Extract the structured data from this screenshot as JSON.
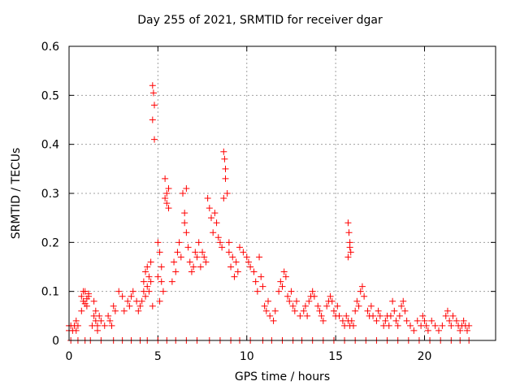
{
  "chart_data": {
    "type": "scatter",
    "title": "Day 255 of 2021, SRMTID for receiver dgar",
    "xlabel": "GPS time / hours",
    "ylabel": "SRMTID / TECUs",
    "xlim": [
      0,
      24
    ],
    "ylim": [
      0,
      0.6
    ],
    "x_ticks": [
      0,
      5,
      10,
      15,
      20
    ],
    "y_ticks": [
      0,
      0.1,
      0.2,
      0.3,
      0.4,
      0.5,
      0.6
    ],
    "x_tick_labels": [
      "0",
      "5",
      "10",
      "15",
      "20"
    ],
    "y_tick_labels": [
      "0",
      "0.1",
      "0.2",
      "0.3",
      "0.4",
      "0.5",
      "0.6"
    ],
    "grid": true,
    "marker": "+",
    "color": "#ff0000",
    "series": [
      {
        "name": "SRMTID",
        "points": [
          [
            0.0,
            0.02
          ],
          [
            0.0,
            0.03
          ],
          [
            0.1,
            0.03
          ],
          [
            0.2,
            0.02
          ],
          [
            0.3,
            0.03
          ],
          [
            0.4,
            0.02
          ],
          [
            0.5,
            0.0
          ],
          [
            0.4,
            0.04
          ],
          [
            0.5,
            0.03
          ],
          [
            0.7,
            0.09
          ],
          [
            0.8,
            0.08
          ],
          [
            0.9,
            0.1
          ],
          [
            1.0,
            0.07
          ],
          [
            1.1,
            0.09
          ],
          [
            0.8,
            0.1
          ],
          [
            1.0,
            0.085
          ],
          [
            1.1,
            0.095
          ],
          [
            0.9,
            0.075
          ],
          [
            0.7,
            0.06
          ],
          [
            1.3,
            0.03
          ],
          [
            1.4,
            0.05
          ],
          [
            1.5,
            0.04
          ],
          [
            1.5,
            0.06
          ],
          [
            1.6,
            0.03
          ],
          [
            1.7,
            0.05
          ],
          [
            1.8,
            0.04
          ],
          [
            1.4,
            0.08
          ],
          [
            1.6,
            0.02
          ],
          [
            2.0,
            0.03
          ],
          [
            2.2,
            0.05
          ],
          [
            2.3,
            0.04
          ],
          [
            2.4,
            0.03
          ],
          [
            2.5,
            0.07
          ],
          [
            2.6,
            0.06
          ],
          [
            2.8,
            0.1
          ],
          [
            3.0,
            0.09
          ],
          [
            3.1,
            0.06
          ],
          [
            3.3,
            0.08
          ],
          [
            3.4,
            0.07
          ],
          [
            3.5,
            0.09
          ],
          [
            3.6,
            0.1
          ],
          [
            3.8,
            0.08
          ],
          [
            3.9,
            0.06
          ],
          [
            4.0,
            0.07
          ],
          [
            4.1,
            0.08
          ],
          [
            4.2,
            0.1
          ],
          [
            4.2,
            0.12
          ],
          [
            4.3,
            0.14
          ],
          [
            4.3,
            0.09
          ],
          [
            4.4,
            0.11
          ],
          [
            4.4,
            0.15
          ],
          [
            4.5,
            0.13
          ],
          [
            4.5,
            0.1
          ],
          [
            4.6,
            0.12
          ],
          [
            4.6,
            0.16
          ],
          [
            4.7,
            0.07
          ],
          [
            4.7,
            0.52
          ],
          [
            4.75,
            0.505
          ],
          [
            4.8,
            0.48
          ],
          [
            4.7,
            0.45
          ],
          [
            4.8,
            0.41
          ],
          [
            5.0,
            0.2
          ],
          [
            5.1,
            0.18
          ],
          [
            5.2,
            0.15
          ],
          [
            5.0,
            0.13
          ],
          [
            5.3,
            0.1
          ],
          [
            5.1,
            0.08
          ],
          [
            5.2,
            0.12
          ],
          [
            5.4,
            0.33
          ],
          [
            5.5,
            0.3
          ],
          [
            5.5,
            0.28
          ],
          [
            5.6,
            0.27
          ],
          [
            5.4,
            0.29
          ],
          [
            5.6,
            0.31
          ],
          [
            5.8,
            0.12
          ],
          [
            5.9,
            0.16
          ],
          [
            6.0,
            0.14
          ],
          [
            6.1,
            0.18
          ],
          [
            6.2,
            0.2
          ],
          [
            6.3,
            0.17
          ],
          [
            6.4,
            0.3
          ],
          [
            6.5,
            0.26
          ],
          [
            6.5,
            0.24
          ],
          [
            6.6,
            0.22
          ],
          [
            6.6,
            0.31
          ],
          [
            6.7,
            0.19
          ],
          [
            6.8,
            0.16
          ],
          [
            6.9,
            0.14
          ],
          [
            7.0,
            0.15
          ],
          [
            7.1,
            0.18
          ],
          [
            7.2,
            0.17
          ],
          [
            7.3,
            0.2
          ],
          [
            7.4,
            0.15
          ],
          [
            7.5,
            0.18
          ],
          [
            7.6,
            0.17
          ],
          [
            7.7,
            0.16
          ],
          [
            7.8,
            0.29
          ],
          [
            7.9,
            0.27
          ],
          [
            8.0,
            0.25
          ],
          [
            8.1,
            0.22
          ],
          [
            8.2,
            0.26
          ],
          [
            8.3,
            0.24
          ],
          [
            8.4,
            0.21
          ],
          [
            8.5,
            0.2
          ],
          [
            8.6,
            0.19
          ],
          [
            8.7,
            0.385
          ],
          [
            8.75,
            0.37
          ],
          [
            8.8,
            0.35
          ],
          [
            8.8,
            0.33
          ],
          [
            8.9,
            0.3
          ],
          [
            8.7,
            0.29
          ],
          [
            9.0,
            0.2
          ],
          [
            9.0,
            0.18
          ],
          [
            9.1,
            0.15
          ],
          [
            9.2,
            0.17
          ],
          [
            9.3,
            0.13
          ],
          [
            9.4,
            0.16
          ],
          [
            9.5,
            0.14
          ],
          [
            9.6,
            0.19
          ],
          [
            9.8,
            0.18
          ],
          [
            10.0,
            0.17
          ],
          [
            10.1,
            0.16
          ],
          [
            10.2,
            0.15
          ],
          [
            10.4,
            0.14
          ],
          [
            10.5,
            0.12
          ],
          [
            10.6,
            0.1
          ],
          [
            10.7,
            0.17
          ],
          [
            10.8,
            0.13
          ],
          [
            10.9,
            0.11
          ],
          [
            11.0,
            0.07
          ],
          [
            11.1,
            0.06
          ],
          [
            11.2,
            0.08
          ],
          [
            11.3,
            0.05
          ],
          [
            11.5,
            0.04
          ],
          [
            11.6,
            0.06
          ],
          [
            11.8,
            0.1
          ],
          [
            11.9,
            0.12
          ],
          [
            12.0,
            0.11
          ],
          [
            12.1,
            0.14
          ],
          [
            12.2,
            0.13
          ],
          [
            12.3,
            0.09
          ],
          [
            12.4,
            0.08
          ],
          [
            12.5,
            0.1
          ],
          [
            12.6,
            0.07
          ],
          [
            12.7,
            0.06
          ],
          [
            12.8,
            0.08
          ],
          [
            13.0,
            0.05
          ],
          [
            13.2,
            0.06
          ],
          [
            13.3,
            0.07
          ],
          [
            13.4,
            0.05
          ],
          [
            13.5,
            0.08
          ],
          [
            13.6,
            0.09
          ],
          [
            13.7,
            0.1
          ],
          [
            13.8,
            0.09
          ],
          [
            14.0,
            0.07
          ],
          [
            14.1,
            0.06
          ],
          [
            14.2,
            0.05
          ],
          [
            14.3,
            0.04
          ],
          [
            14.5,
            0.07
          ],
          [
            14.6,
            0.08
          ],
          [
            14.7,
            0.09
          ],
          [
            14.8,
            0.08
          ],
          [
            14.9,
            0.06
          ],
          [
            15.0,
            0.05
          ],
          [
            15.1,
            0.07
          ],
          [
            15.2,
            0.05
          ],
          [
            15.4,
            0.04
          ],
          [
            15.5,
            0.03
          ],
          [
            15.6,
            0.05
          ],
          [
            15.7,
            0.04
          ],
          [
            15.8,
            0.03
          ],
          [
            15.9,
            0.04
          ],
          [
            15.7,
            0.24
          ],
          [
            15.75,
            0.22
          ],
          [
            15.8,
            0.2
          ],
          [
            15.8,
            0.19
          ],
          [
            15.85,
            0.18
          ],
          [
            15.7,
            0.17
          ],
          [
            16.0,
            0.03
          ],
          [
            16.1,
            0.06
          ],
          [
            16.2,
            0.08
          ],
          [
            16.3,
            0.07
          ],
          [
            16.4,
            0.1
          ],
          [
            16.5,
            0.11
          ],
          [
            16.6,
            0.09
          ],
          [
            16.8,
            0.06
          ],
          [
            16.9,
            0.05
          ],
          [
            17.0,
            0.07
          ],
          [
            17.1,
            0.05
          ],
          [
            17.3,
            0.04
          ],
          [
            17.4,
            0.06
          ],
          [
            17.5,
            0.05
          ],
          [
            17.7,
            0.03
          ],
          [
            17.8,
            0.04
          ],
          [
            17.9,
            0.05
          ],
          [
            18.0,
            0.03
          ],
          [
            18.1,
            0.05
          ],
          [
            18.2,
            0.08
          ],
          [
            18.3,
            0.06
          ],
          [
            18.4,
            0.04
          ],
          [
            18.5,
            0.03
          ],
          [
            18.6,
            0.05
          ],
          [
            18.7,
            0.07
          ],
          [
            18.8,
            0.08
          ],
          [
            18.9,
            0.06
          ],
          [
            19.0,
            0.04
          ],
          [
            19.2,
            0.03
          ],
          [
            19.4,
            0.02
          ],
          [
            19.6,
            0.04
          ],
          [
            19.8,
            0.03
          ],
          [
            19.9,
            0.05
          ],
          [
            20.0,
            0.04
          ],
          [
            20.1,
            0.03
          ],
          [
            20.2,
            0.02
          ],
          [
            20.4,
            0.04
          ],
          [
            20.6,
            0.03
          ],
          [
            20.8,
            0.02
          ],
          [
            21.0,
            0.03
          ],
          [
            21.2,
            0.05
          ],
          [
            21.3,
            0.06
          ],
          [
            21.4,
            0.04
          ],
          [
            21.5,
            0.03
          ],
          [
            21.6,
            0.05
          ],
          [
            21.8,
            0.04
          ],
          [
            21.9,
            0.03
          ],
          [
            22.0,
            0.02
          ],
          [
            22.1,
            0.03
          ],
          [
            22.2,
            0.04
          ],
          [
            22.3,
            0.03
          ],
          [
            22.4,
            0.02
          ],
          [
            22.5,
            0.03
          ],
          [
            0.1,
            0.0
          ],
          [
            0.9,
            0.0
          ],
          [
            1.2,
            0.0
          ],
          [
            1.8,
            0.0
          ],
          [
            2.5,
            0.0
          ],
          [
            3.0,
            0.0
          ],
          [
            3.5,
            0.0
          ],
          [
            4.0,
            0.0
          ],
          [
            4.4,
            0.0
          ],
          [
            5.0,
            0.0
          ],
          [
            5.5,
            0.0
          ],
          [
            6.0,
            0.0
          ],
          [
            6.6,
            0.0
          ],
          [
            7.2,
            0.0
          ],
          [
            7.9,
            0.0
          ],
          [
            8.5,
            0.0
          ],
          [
            9.1,
            0.0
          ],
          [
            9.6,
            0.0
          ],
          [
            10.2,
            0.0
          ],
          [
            10.9,
            0.0
          ],
          [
            11.4,
            0.0
          ],
          [
            12.0,
            0.0
          ],
          [
            12.6,
            0.0
          ],
          [
            13.1,
            0.0
          ],
          [
            13.7,
            0.0
          ],
          [
            14.3,
            0.0
          ],
          [
            14.9,
            0.0
          ],
          [
            15.5,
            0.0
          ],
          [
            16.1,
            0.0
          ],
          [
            16.7,
            0.0
          ],
          [
            17.3,
            0.0
          ],
          [
            17.9,
            0.0
          ],
          [
            18.5,
            0.0
          ],
          [
            19.1,
            0.0
          ],
          [
            19.7,
            0.0
          ],
          [
            20.3,
            0.0
          ],
          [
            20.9,
            0.0
          ],
          [
            21.5,
            0.0
          ],
          [
            22.0,
            0.0
          ],
          [
            22.5,
            0.0
          ]
        ]
      }
    ]
  }
}
